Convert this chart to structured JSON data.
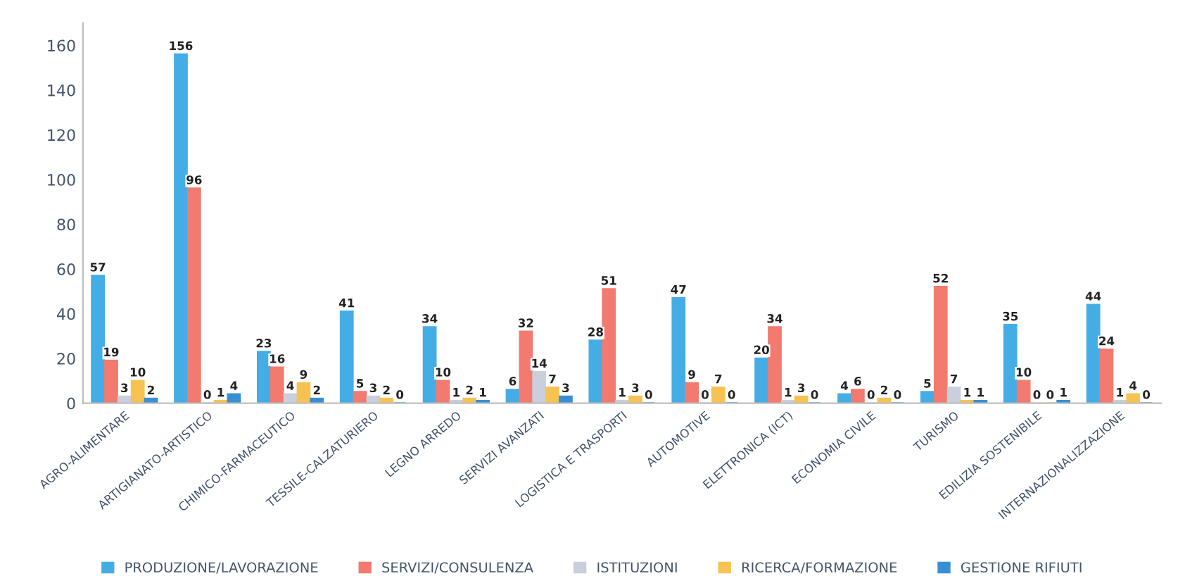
{
  "chart_data": {
    "type": "bar",
    "categories": [
      "AGRO-ALIMENTARE",
      "ARTIGIANATO-ARTISTICO",
      "CHIMICO-FARMACEUTICO",
      "TESSILE-CALZATURIERO",
      "LEGNO ARREDO",
      "SERVIZI AVANZATI",
      "LOGISTICA E TRASPORTI",
      "AUTOMOTIVE",
      "ELETTRONICA (ICT)",
      "ECONOMIA CIVILE",
      "TURISMO",
      "EDILIZIA SOSTENIBILE",
      "INTERNAZIONALIZZAZIONE"
    ],
    "series": [
      {
        "name": "PRODUZIONE/LAVORAZIONE",
        "color": "#45ade6",
        "values": [
          57,
          156,
          23,
          41,
          34,
          6,
          28,
          47,
          20,
          4,
          5,
          35,
          44
        ]
      },
      {
        "name": "SERVIZI/CONSULENZA",
        "color": "#f27a6e",
        "values": [
          19,
          96,
          16,
          5,
          10,
          32,
          51,
          9,
          34,
          6,
          52,
          10,
          24
        ]
      },
      {
        "name": "ISTITUZIONI",
        "color": "#c9cfdc",
        "values": [
          3,
          0,
          4,
          3,
          1,
          14,
          1,
          0,
          1,
          0,
          7,
          0,
          1
        ]
      },
      {
        "name": "RICERCA/FORMAZIONE",
        "color": "#f6c352",
        "values": [
          10,
          1,
          9,
          2,
          2,
          7,
          3,
          7,
          3,
          2,
          1,
          0,
          4
        ]
      },
      {
        "name": "GESTIONE RIFIUTI",
        "color": "#3a8fd4",
        "values": [
          2,
          4,
          2,
          0,
          1,
          3,
          0,
          0,
          0,
          0,
          1,
          1,
          0
        ]
      }
    ],
    "ylim": [
      0,
      170
    ],
    "yticks": [
      0,
      20,
      40,
      60,
      80,
      100,
      120,
      140,
      160
    ],
    "data_labels": true,
    "legend": "bottom",
    "grid": false
  }
}
